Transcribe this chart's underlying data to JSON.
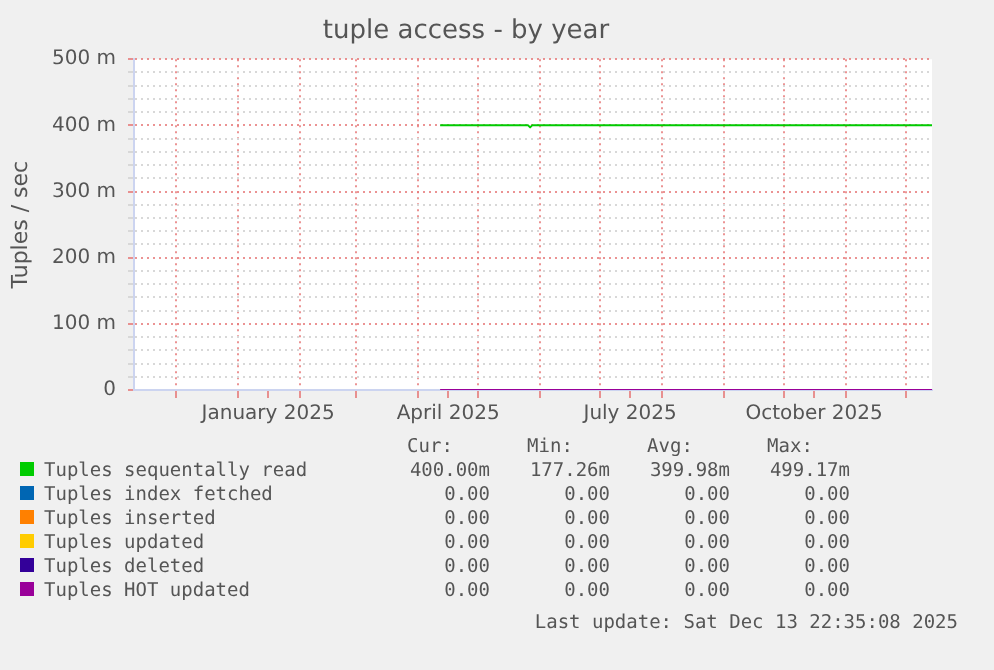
{
  "chart_data": {
    "type": "line",
    "title": "tuple access - by year",
    "ylabel": "Tuples / sec",
    "x": [
      "2025-04-12",
      "2025-05-26",
      "2025-05-27",
      "2025-05-28",
      "2025-12-13T22:35"
    ],
    "xlim": [
      "2024-11-09T22:35",
      "2025-12-13T22:35"
    ],
    "xticks": [
      {
        "value": "2024-12-01",
        "label": null
      },
      {
        "value": "2025-01-01",
        "label": null
      },
      {
        "value": "2025-01-16",
        "label": "January 2025"
      },
      {
        "value": "2025-02-01",
        "label": null
      },
      {
        "value": "2025-03-01",
        "label": null
      },
      {
        "value": "2025-04-01",
        "label": null
      },
      {
        "value": "2025-04-16",
        "label": "April 2025"
      },
      {
        "value": "2025-05-01",
        "label": null
      },
      {
        "value": "2025-06-01",
        "label": null
      },
      {
        "value": "2025-07-01",
        "label": null
      },
      {
        "value": "2025-07-16",
        "label": "July 2025"
      },
      {
        "value": "2025-08-01",
        "label": null
      },
      {
        "value": "2025-09-01",
        "label": null
      },
      {
        "value": "2025-10-01",
        "label": null
      },
      {
        "value": "2025-10-16",
        "label": "October 2025"
      },
      {
        "value": "2025-11-01",
        "label": null
      },
      {
        "value": "2025-12-01",
        "label": null
      }
    ],
    "ylim": [
      0,
      500
    ],
    "yticks": [
      {
        "value": 0,
        "label": "0"
      },
      {
        "value": 20,
        "label": null
      },
      {
        "value": 40,
        "label": null
      },
      {
        "value": 60,
        "label": null
      },
      {
        "value": 80,
        "label": null
      },
      {
        "value": 100,
        "label": "100 m"
      },
      {
        "value": 120,
        "label": null
      },
      {
        "value": 140,
        "label": null
      },
      {
        "value": 160,
        "label": null
      },
      {
        "value": 180,
        "label": null
      },
      {
        "value": 200,
        "label": "200 m"
      },
      {
        "value": 220,
        "label": null
      },
      {
        "value": 240,
        "label": null
      },
      {
        "value": 260,
        "label": null
      },
      {
        "value": 280,
        "label": null
      },
      {
        "value": 300,
        "label": "300 m"
      },
      {
        "value": 320,
        "label": null
      },
      {
        "value": 340,
        "label": null
      },
      {
        "value": 360,
        "label": null
      },
      {
        "value": 380,
        "label": null
      },
      {
        "value": 400,
        "label": "400 m"
      },
      {
        "value": 420,
        "label": null
      },
      {
        "value": 440,
        "label": null
      },
      {
        "value": 460,
        "label": null
      },
      {
        "value": 480,
        "label": null
      },
      {
        "value": 500,
        "label": "500 m"
      }
    ],
    "grid": true,
    "legend": "bottom",
    "marker": "none",
    "line_style": "solid",
    "series": [
      {
        "name": "Tuples sequentally read",
        "color": "#00cc00",
        "values": [
          400,
          400,
          397,
          400,
          400
        ]
      },
      {
        "name": "Tuples index fetched",
        "color": "#0066b3",
        "values": [
          null,
          null,
          null,
          null,
          null
        ]
      },
      {
        "name": "Tuples inserted",
        "color": "#ff8000",
        "values": [
          null,
          null,
          null,
          null,
          null
        ]
      },
      {
        "name": "Tuples updated",
        "color": "#ffcc00",
        "values": [
          null,
          null,
          null,
          null,
          null
        ]
      },
      {
        "name": "Tuples deleted",
        "color": "#330099",
        "values": [
          null,
          null,
          null,
          null,
          null
        ]
      },
      {
        "name": "Tuples HOT updated",
        "color": "#990099",
        "values": [
          0,
          0,
          0,
          0,
          0
        ]
      }
    ],
    "annotations": [
      "Cur:",
      "Min:",
      "Avg:",
      "Max:",
      "400.00m",
      "177.26m",
      "399.98m",
      "499.17m",
      "0.00",
      "0.00",
      "0.00",
      "0.00",
      "0.00",
      "0.00",
      "0.00",
      "0.00",
      "0.00",
      "0.00",
      "0.00",
      "0.00",
      "0.00",
      "0.00",
      "0.00",
      "0.00",
      "0.00",
      "0.00",
      "0.00",
      "0.00",
      "Last update: Sat Dec 13 22:35:08 2025"
    ]
  }
}
